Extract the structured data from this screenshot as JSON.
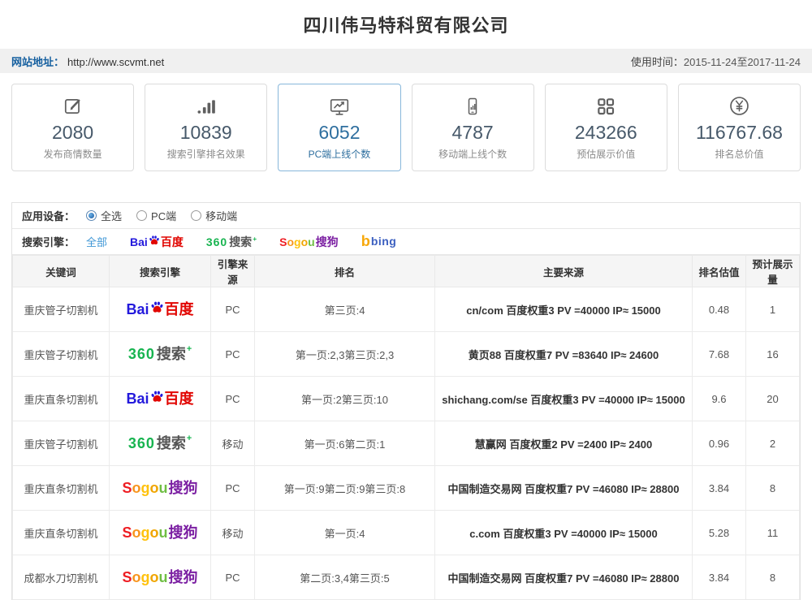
{
  "header": {
    "title": "四川伟马特科贸有限公司"
  },
  "infobar": {
    "site_label": "网站地址：",
    "site_url": "http://www.scvmt.net",
    "usage_label": "使用时间：",
    "usage_value": "2015-11-24至2017-11-24"
  },
  "colors": {
    "accent_blue": "#2f6f9f",
    "link_blue": "#3f97d6",
    "baidu_blue": "#2319dc",
    "baidu_red": "#e10602",
    "so360_green": "#18b450",
    "sogou_purple": "#7b1fa2",
    "bing_orange": "#f7a80b",
    "bing_blue": "#3b5fc0"
  },
  "stats": {
    "cards": [
      {
        "icon": "edit-icon",
        "value": "2080",
        "label": "发布商情数量",
        "active": false
      },
      {
        "icon": "bar-chart-icon",
        "value": "10839",
        "label": "搜索引擎排名效果",
        "active": false
      },
      {
        "icon": "monitor-icon",
        "value": "6052",
        "label": "PC端上线个数",
        "active": true
      },
      {
        "icon": "mobile-icon",
        "value": "4787",
        "label": "移动端上线个数",
        "active": false
      },
      {
        "icon": "grid-icon",
        "value": "243266",
        "label": "预估展示价值",
        "active": false
      },
      {
        "icon": "yuan-icon",
        "value": "116767.68",
        "label": "排名总价值",
        "active": false
      }
    ]
  },
  "filters": {
    "device": {
      "label": "应用设备：",
      "options": [
        {
          "label": "全选",
          "selected": true
        },
        {
          "label": "PC端",
          "selected": false
        },
        {
          "label": "移动端",
          "selected": false
        }
      ]
    },
    "engine": {
      "label": "搜索引擎：",
      "all_link": "全部",
      "items": [
        "baidu",
        "so360",
        "sogou",
        "bing"
      ]
    }
  },
  "logos": {
    "baidu": {
      "latin": "Bai",
      "cjk": "百度"
    },
    "so360": {
      "num": "360",
      "cjk": "搜索",
      "plus": "+"
    },
    "sogou": {
      "letters": [
        "S",
        "o",
        "g",
        "o",
        "u"
      ],
      "letter_colors": [
        "#ee1d23",
        "#f7941d",
        "#ffc20e",
        "#f0a500",
        "#6fbe44"
      ],
      "cjk": "搜狗"
    },
    "bing": {
      "b": "b",
      "name": "bing"
    }
  },
  "table": {
    "headers": [
      "关键词",
      "搜索引擎",
      "引擎来源",
      "排名",
      "主要来源",
      "排名估值",
      "预计展示量"
    ],
    "rows": [
      {
        "keyword": "重庆管子切割机",
        "engine": "baidu",
        "source": "PC",
        "rank": "第三页:4",
        "main_source": "cn/com 百度权重3 PV =40000 IP≈ 15000",
        "rank_value": "0.48",
        "impressions": "1"
      },
      {
        "keyword": "重庆管子切割机",
        "engine": "so360",
        "source": "PC",
        "rank": "第一页:2,3第三页:2,3",
        "main_source": "黄页88 百度权重7 PV =83640 IP≈ 24600",
        "rank_value": "7.68",
        "impressions": "16"
      },
      {
        "keyword": "重庆直条切割机",
        "engine": "baidu",
        "source": "PC",
        "rank": "第一页:2第三页:10",
        "main_source": "shichang.com/se 百度权重3 PV =40000 IP≈ 15000",
        "rank_value": "9.6",
        "impressions": "20"
      },
      {
        "keyword": "重庆管子切割机",
        "engine": "so360",
        "source": "移动",
        "rank": "第一页:6第二页:1",
        "main_source": "慧赢网 百度权重2 PV =2400 IP≈ 2400",
        "rank_value": "0.96",
        "impressions": "2"
      },
      {
        "keyword": "重庆直条切割机",
        "engine": "sogou",
        "source": "PC",
        "rank": "第一页:9第二页:9第三页:8",
        "main_source": "中国制造交易网 百度权重7 PV =46080 IP≈ 28800",
        "rank_value": "3.84",
        "impressions": "8"
      },
      {
        "keyword": "重庆直条切割机",
        "engine": "sogou",
        "source": "移动",
        "rank": "第一页:4",
        "main_source": "c.com 百度权重3 PV =40000 IP≈ 15000",
        "rank_value": "5.28",
        "impressions": "11"
      },
      {
        "keyword": "成都水刀切割机",
        "engine": "sogou",
        "source": "PC",
        "rank": "第二页:3,4第三页:5",
        "main_source": "中国制造交易网 百度权重7 PV =46080 IP≈ 28800",
        "rank_value": "3.84",
        "impressions": "8"
      }
    ]
  }
}
